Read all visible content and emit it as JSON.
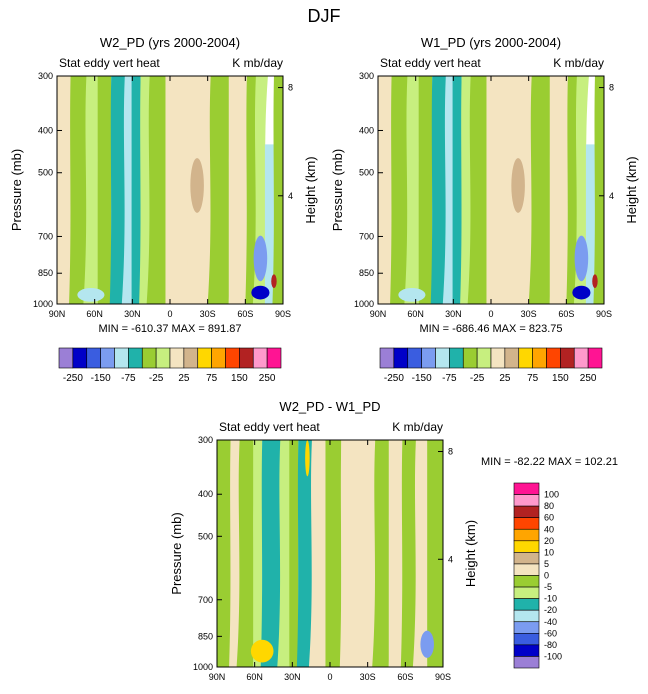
{
  "figure": {
    "title": "DJF"
  },
  "shared": {
    "ylabel_left": "Pressure (mb)",
    "ylabel_right": "Height (km)",
    "x_ticks": [
      "90N",
      "60N",
      "30N",
      "0",
      "30S",
      "60S",
      "90S"
    ],
    "y_ticks": [
      "300",
      "400",
      "500",
      "700",
      "850",
      "1000"
    ],
    "height_ticks": [
      "8",
      "4"
    ],
    "colors": {
      "frame": "#000000",
      "background": "#ffffff"
    }
  },
  "chart_data": [
    {
      "type": "heatmap",
      "title": "W2_PD (yrs 2000-2004)",
      "subtitle_left": "Stat eddy vert heat",
      "subtitle_right": "K mb/day",
      "stats": "MIN = -610.37   MAX = 891.87",
      "xlabel": "",
      "ylabel": "Pressure (mb)",
      "ylim": [
        1000,
        300
      ],
      "levels": [
        -250,
        -200,
        -150,
        -100,
        -75,
        -50,
        -25,
        0,
        25,
        50,
        75,
        100,
        150,
        200,
        250
      ],
      "colorbar_labels": [
        "-250",
        "-150",
        "-75",
        "-25",
        "25",
        "75",
        "150",
        "250"
      ],
      "colorbar_colors": [
        "#9b7fd6",
        "#0000c8",
        "#3a5de0",
        "#7b9cf0",
        "#b4e6ef",
        "#20b2aa",
        "#9acd32",
        "#c7ef7f",
        "#f4e4c1",
        "#d2b48c",
        "#ffd700",
        "#ffa500",
        "#ff4500",
        "#b22222",
        "#ff99cc",
        "#ff1493"
      ]
    },
    {
      "type": "heatmap",
      "title": "W1_PD (yrs 2000-2004)",
      "subtitle_left": "Stat eddy vert heat",
      "subtitle_right": "K mb/day",
      "stats": "MIN = -686.46   MAX = 823.75",
      "xlabel": "",
      "ylabel": "Pressure (mb)",
      "ylim": [
        1000,
        300
      ],
      "levels": [
        -250,
        -200,
        -150,
        -100,
        -75,
        -50,
        -25,
        0,
        25,
        50,
        75,
        100,
        150,
        200,
        250
      ],
      "colorbar_labels": [
        "-250",
        "-150",
        "-75",
        "-25",
        "25",
        "75",
        "150",
        "250"
      ],
      "colorbar_colors": [
        "#9b7fd6",
        "#0000c8",
        "#3a5de0",
        "#7b9cf0",
        "#b4e6ef",
        "#20b2aa",
        "#9acd32",
        "#c7ef7f",
        "#f4e4c1",
        "#d2b48c",
        "#ffd700",
        "#ffa500",
        "#ff4500",
        "#b22222",
        "#ff99cc",
        "#ff1493"
      ]
    },
    {
      "type": "heatmap",
      "title": "W2_PD - W1_PD",
      "subtitle_left": "Stat eddy vert heat",
      "subtitle_right": "K mb/day",
      "stats": "MIN = -82.22   MAX = 102.21",
      "xlabel": "",
      "ylabel": "Pressure (mb)",
      "ylim": [
        1000,
        300
      ],
      "levels": [
        -100,
        -80,
        -60,
        -40,
        -20,
        -10,
        -5,
        0,
        5,
        10,
        20,
        40,
        60,
        80,
        100
      ],
      "colorbar_labels": [
        "100",
        "80",
        "60",
        "40",
        "20",
        "10",
        "5",
        "0",
        "-5",
        "-10",
        "-20",
        "-40",
        "-60",
        "-80",
        "-100"
      ],
      "colorbar_colors": [
        "#ff1493",
        "#ff99cc",
        "#b22222",
        "#ff4500",
        "#ffa500",
        "#ffd700",
        "#d2b48c",
        "#f4e4c1",
        "#9acd32",
        "#c7ef7f",
        "#20b2aa",
        "#b4e6ef",
        "#7b9cf0",
        "#3a5de0",
        "#0000c8",
        "#9b7fd6"
      ]
    }
  ]
}
